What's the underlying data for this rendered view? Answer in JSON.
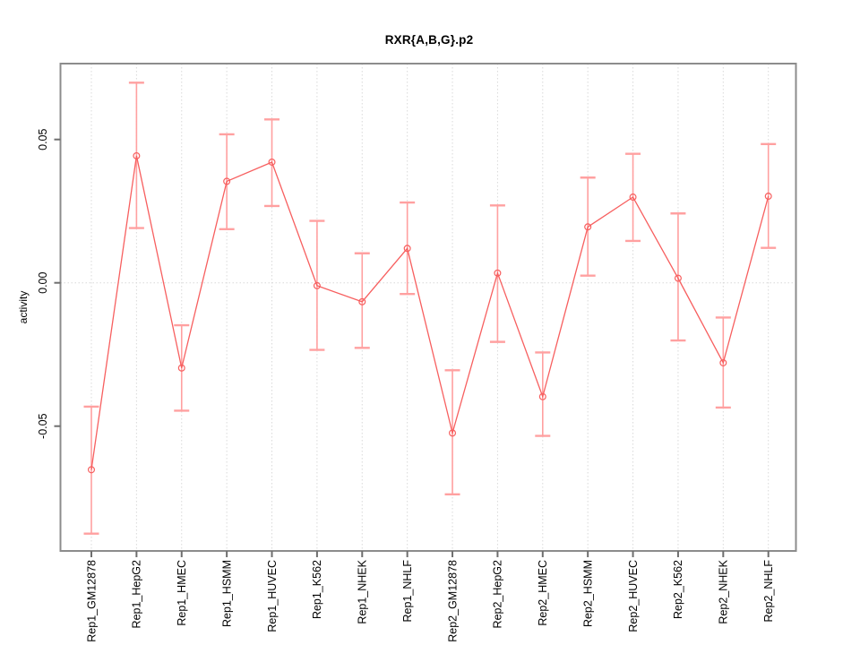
{
  "title": "RXR{A,B,G}.p2",
  "chart_data": {
    "type": "line",
    "title": "RXR{A,B,G}.p2",
    "xlabel": "",
    "ylabel": "activity",
    "categories": [
      "Rep1_GM12878",
      "Rep1_HepG2",
      "Rep1_HMEC",
      "Rep1_HSMM",
      "Rep1_HUVEC",
      "Rep1_K562",
      "Rep1_NHEK",
      "Rep1_NHLF",
      "Rep2_GM12878",
      "Rep2_HepG2",
      "Rep2_HMEC",
      "Rep2_HSMM",
      "Rep2_HUVEC",
      "Rep2_K562",
      "Rep2_NHEK",
      "Rep2_NHLF"
    ],
    "series": [
      {
        "name": "activity",
        "values": [
          -0.0652,
          0.0443,
          -0.0297,
          0.0354,
          0.0421,
          -0.001,
          -0.0066,
          0.012,
          -0.0524,
          0.0034,
          -0.0397,
          0.0195,
          0.0299,
          0.0016,
          -0.0279,
          0.0302
        ],
        "error_high": [
          -0.0432,
          0.0698,
          -0.0148,
          0.0518,
          0.057,
          0.0216,
          0.0103,
          0.028,
          -0.0305,
          0.027,
          -0.0243,
          0.0367,
          0.045,
          0.0242,
          -0.0121,
          0.0484
        ],
        "error_low": [
          -0.0875,
          0.0191,
          -0.0446,
          0.0187,
          0.0268,
          -0.0234,
          -0.0227,
          -0.0039,
          -0.0738,
          -0.0206,
          -0.0534,
          0.0025,
          0.0146,
          -0.0201,
          -0.0435,
          0.0122
        ]
      }
    ],
    "ylim": [
      -0.0935,
      0.0765
    ],
    "yticks": [
      -0.05,
      0.0,
      0.05
    ],
    "ytick_labels": [
      "-0.05",
      "0.00",
      "0.05"
    ],
    "grid": "vertical dotted line at every category; horizontal dotted line at y=0; no legend",
    "marker": "open-circle",
    "colors": {
      "line": "#f75f5f",
      "errorbar": "#ffa0a0",
      "grid": "#d9d9d9",
      "axis": "#8c8c8c",
      "tick": "#6e6e6e",
      "text": "#000000",
      "background": "#ffffff"
    }
  }
}
